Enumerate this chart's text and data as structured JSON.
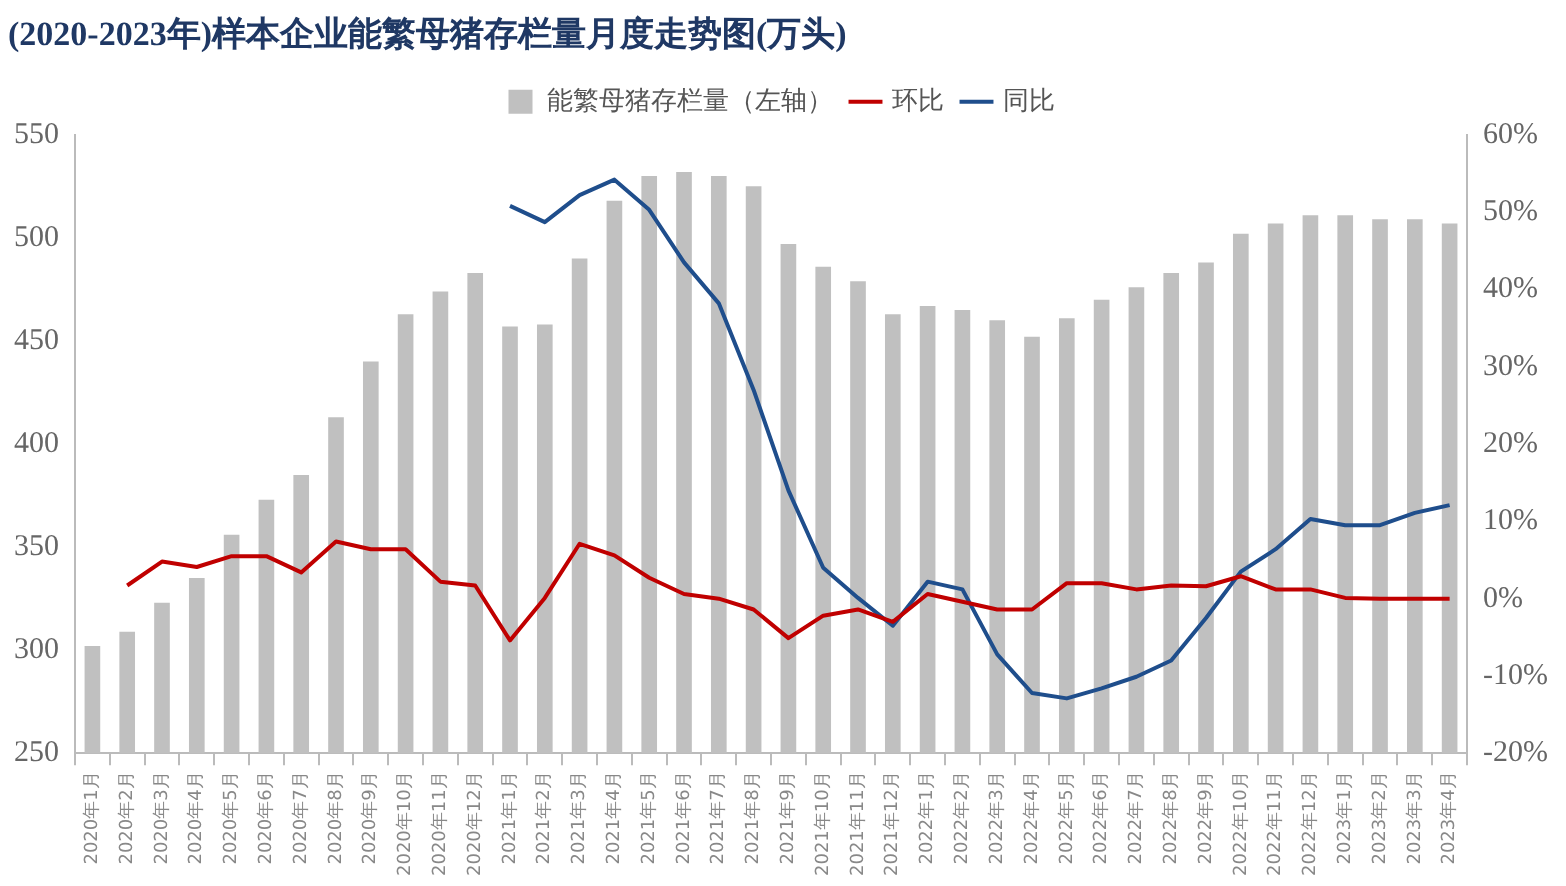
{
  "chart_data": {
    "type": "bar",
    "title": "(2020-2023年)样本企业能繁母猪存栏量月度走势图(万头)",
    "categories": [
      "2020年1月",
      "2020年2月",
      "2020年3月",
      "2020年4月",
      "2020年5月",
      "2020年6月",
      "2020年7月",
      "2020年8月",
      "2020年9月",
      "2020年10月",
      "2020年11月",
      "2020年12月",
      "2021年1月",
      "2021年2月",
      "2021年3月",
      "2021年4月",
      "2021年5月",
      "2021年6月",
      "2021年7月",
      "2021年8月",
      "2021年9月",
      "2021年10月",
      "2021年11月",
      "2021年12月",
      "2022年1月",
      "2022年2月",
      "2022年3月",
      "2022年4月",
      "2022年5月",
      "2022年6月",
      "2022年7月",
      "2022年8月",
      "2022年9月",
      "2022年10月",
      "2022年11月",
      "2022年12月",
      "2023年1月",
      "2023年2月",
      "2023年3月",
      "2023年4月"
    ],
    "series": [
      {
        "name": "能繁母猪存栏量（左轴）",
        "color": "#c0c0c0",
        "values": [
          302,
          309,
          323,
          335,
          356,
          373,
          385,
          413,
          440,
          463,
          474,
          483,
          457,
          458,
          490,
          518,
          530,
          532,
          530,
          525,
          497,
          486,
          479,
          463,
          467,
          465,
          460,
          452,
          461,
          470,
          476,
          483,
          488,
          502,
          507,
          511,
          511,
          509,
          509,
          507
        ]
      },
      {
        "name": "环比",
        "type": "line",
        "axis": "y2",
        "color": "#c00000",
        "values": [
          null,
          1.7,
          4.8,
          4.1,
          5.5,
          5.5,
          3.4,
          7.4,
          6.4,
          6.4,
          2.2,
          1.7,
          -5.4,
          0.1,
          7.1,
          5.6,
          2.7,
          0.6,
          0,
          -1.4,
          -5.1,
          -2.2,
          -1.4,
          -3.0,
          0.6,
          -0.4,
          -1.4,
          -1.4,
          2.0,
          2.0,
          1.2,
          1.7,
          1.6,
          2.9,
          1.2,
          1.2,
          0.1,
          0,
          0,
          0
        ]
      },
      {
        "name": "同比",
        "type": "line",
        "axis": "y2",
        "color": "#1f4e8c",
        "values": [
          null,
          null,
          null,
          null,
          null,
          null,
          null,
          null,
          null,
          null,
          null,
          null,
          50.8,
          48.7,
          52.2,
          54.2,
          50.3,
          43.5,
          38.2,
          27,
          14,
          4,
          0.1,
          -3.5,
          2.2,
          1.2,
          -7.2,
          -12.2,
          -12.9,
          -11.6,
          -10.1,
          -8.0,
          -2.5,
          3.5,
          6.4,
          10.3,
          9.5,
          9.5,
          11.1,
          12.1
        ]
      }
    ],
    "ylim": [
      250,
      550
    ],
    "yticks": [
      250,
      300,
      350,
      400,
      450,
      500,
      550
    ],
    "y2lim": [
      -20,
      60
    ],
    "y2ticks": [
      {
        "value": -20,
        "label": "-20%"
      },
      {
        "value": -10,
        "label": "-10%"
      },
      {
        "value": 0,
        "label": "0%"
      },
      {
        "value": 10,
        "label": "10%"
      },
      {
        "value": 20,
        "label": "20%"
      },
      {
        "value": 30,
        "label": "30%"
      },
      {
        "value": 40,
        "label": "40%"
      },
      {
        "value": 50,
        "label": "50%"
      },
      {
        "value": 60,
        "label": "60%"
      }
    ],
    "grid": false,
    "legend": "top",
    "marker": "none",
    "line_style": "solid"
  }
}
